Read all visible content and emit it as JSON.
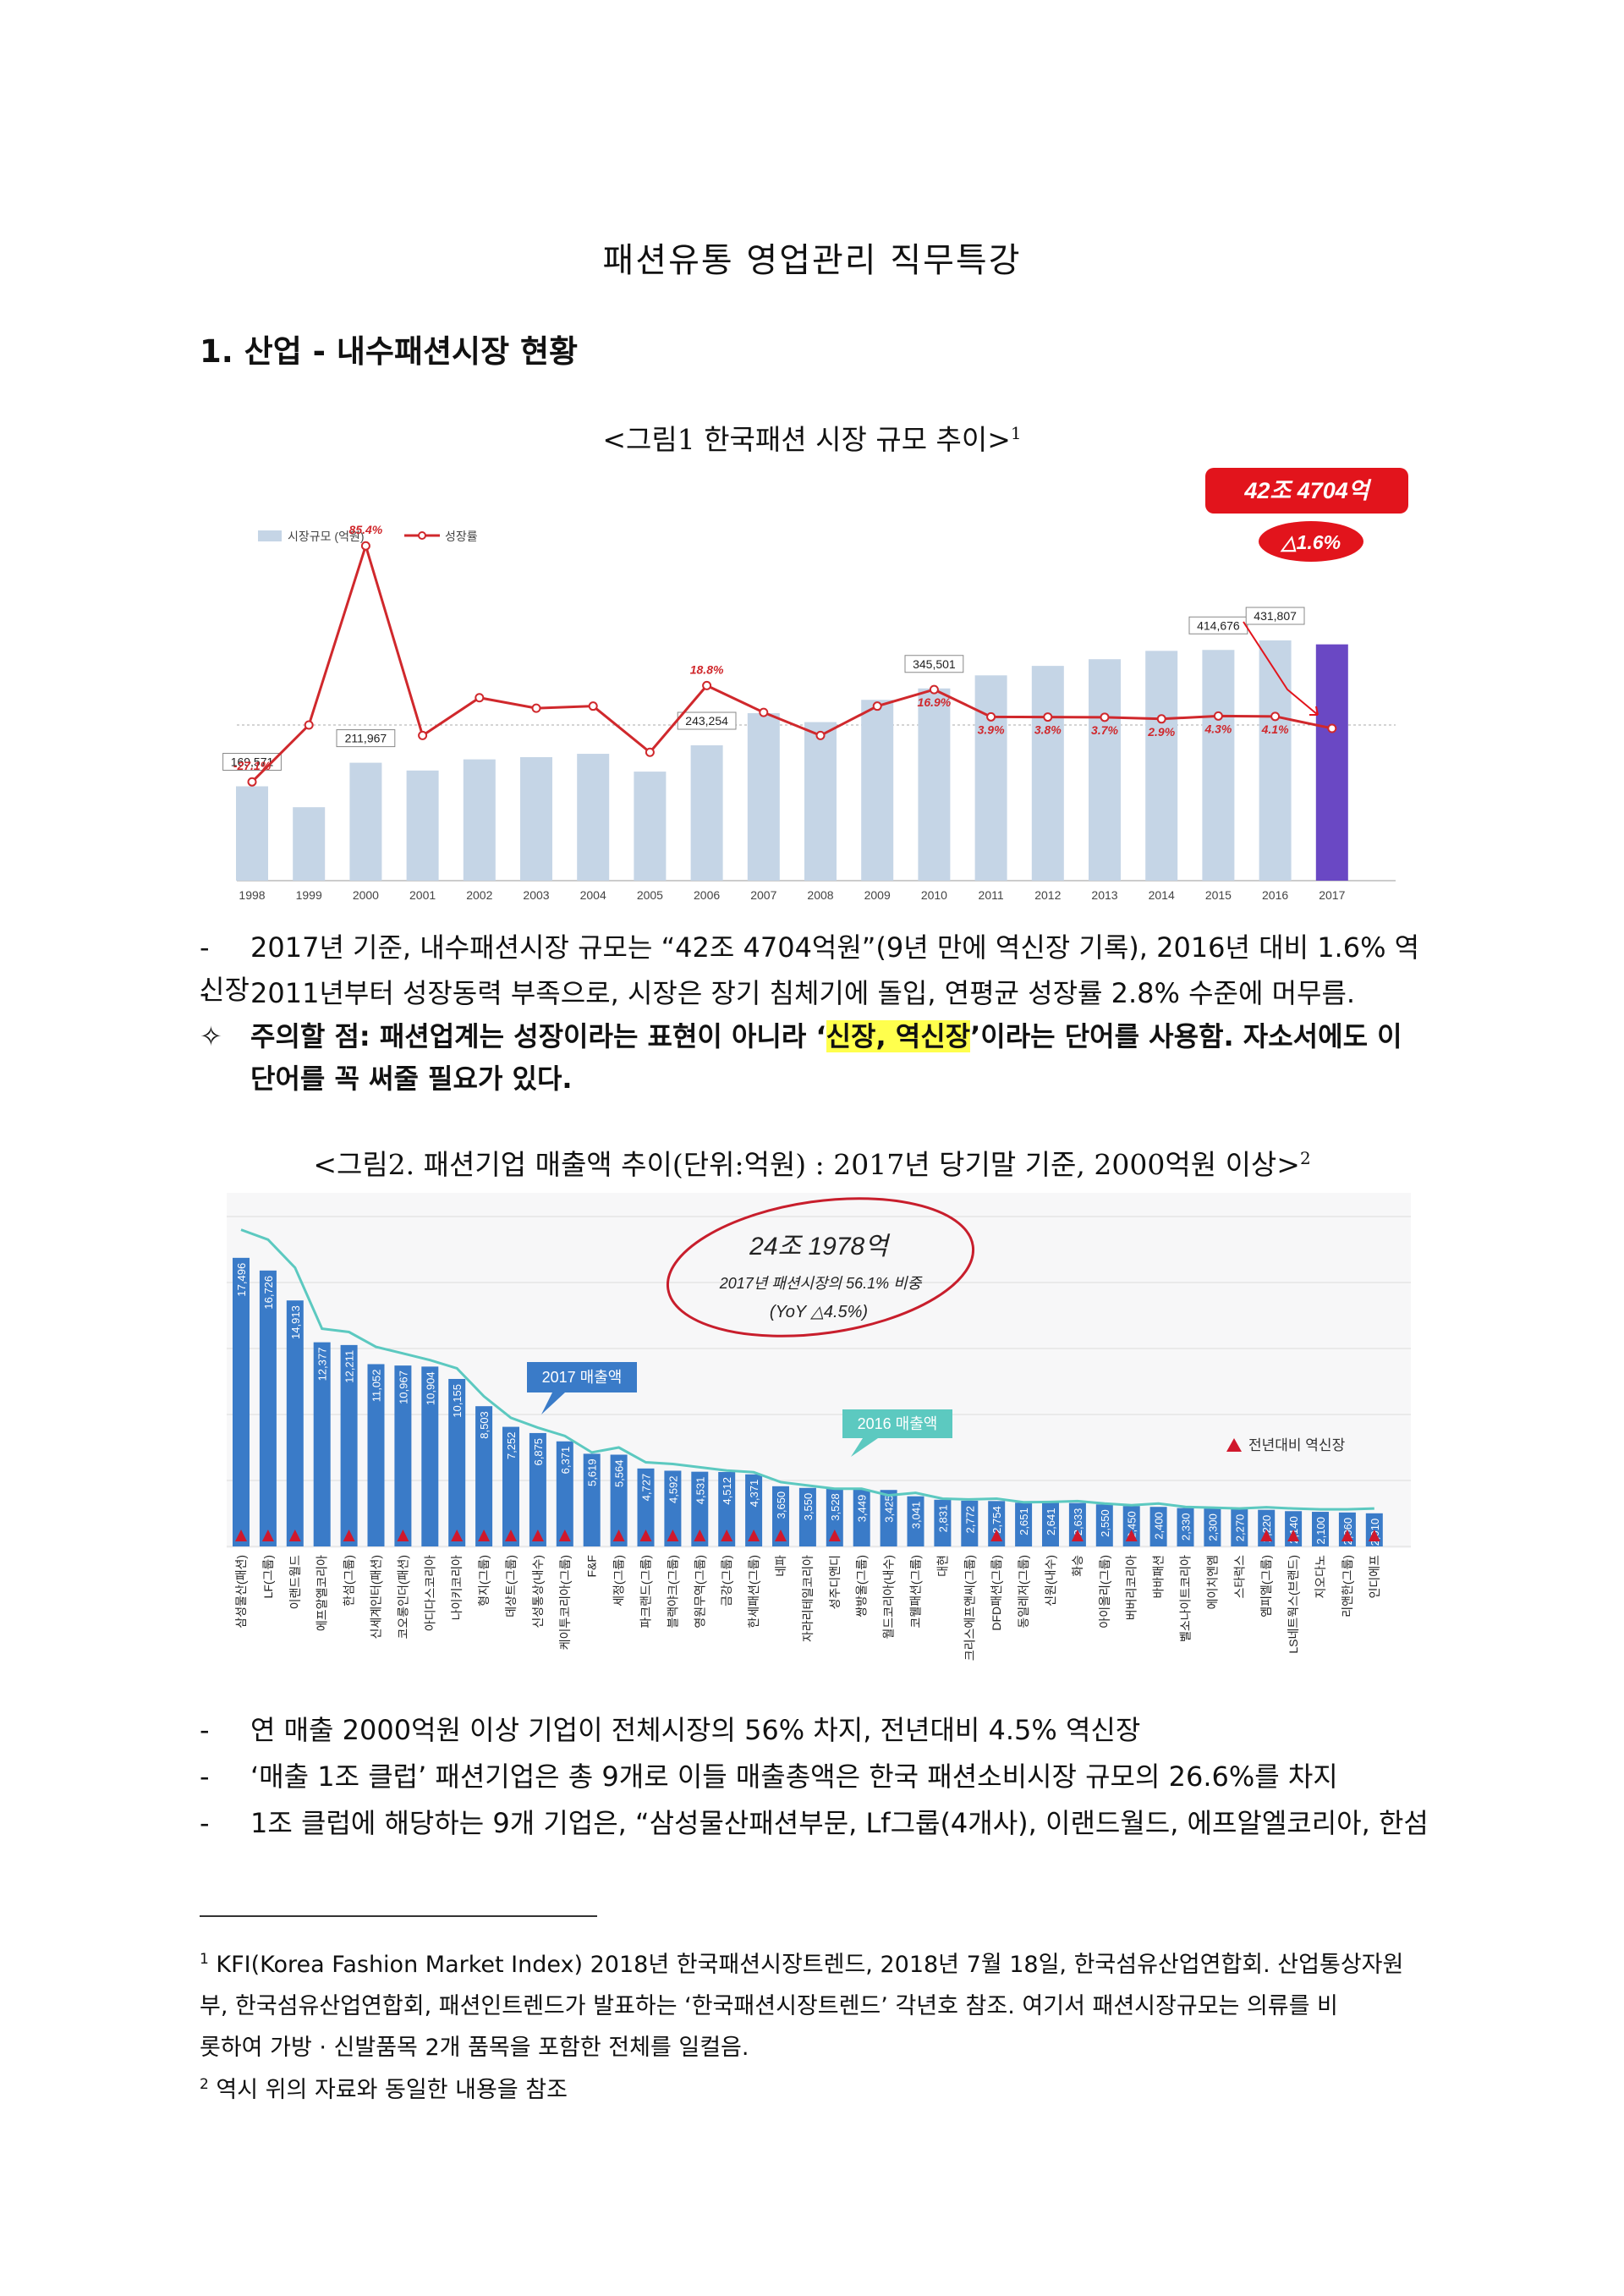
{
  "document": {
    "title": "패션유통 영업관리 직무특강",
    "section_heading": "1.  산업 - 내수패션시장 현황"
  },
  "figure1": {
    "caption": "<그림1 한국패션 시장 규모 추이>",
    "caption_ref": "1",
    "stamp_total": "42조 4704억",
    "stamp_growth": "△1.6%"
  },
  "figure2": {
    "caption": "<그림2. 패션기업 매출액 추이(단위:억원) : 2017년 당기말 기준, 2000억원 이상>",
    "caption_ref": "2",
    "note_line1": "24조 1978억",
    "note_line2": "2017년 패션시장의 56.1% 비중",
    "note_line3": "(YoY △4.5%)"
  },
  "bullets1": [
    {
      "mark": "-",
      "text": "2017년 기준, 내수패션시장 규모는 “42조 4704억원”(9년 만에 역신장 기록), 2016년 대비 1.6% 역신장"
    },
    {
      "mark": "-",
      "text": "2011년부터 성장동력 부족으로, 시장은 장기 침체기에 돌입, 연평균 성장률 2.8% 수준에 머무름."
    }
  ],
  "notice": {
    "mark": "✧",
    "part1": "주의할 점: 패션업계는 성장이라는 표현이 아니라 ‘",
    "highlight": "신장, 역신장",
    "part2": "’이라는 단어를 사용함. 자소서에도 이",
    "line2": "단어를 꼭 써줄 필요가 있다."
  },
  "bullets2": [
    {
      "mark": "-",
      "text": "연 매출 2000억원 이상 기업이 전체시장의 56% 차지, 전년대비 4.5% 역신장"
    },
    {
      "mark": "-",
      "text": "‘매출 1조 클럽’ 패션기업은 총 9개로 이들 매출총액은 한국 패션소비시장 규모의 26.6%를 차지"
    },
    {
      "mark": "-",
      "text": "1조 클럽에 해당하는 9개 기업은, “삼성물산패션부문, Lf그룹(4개사), 이랜드월드, 에프알엘코리아, 한섬"
    }
  ],
  "footnotes": [
    {
      "num": "1",
      "line1": "KFI(Korea Fashion Market Index) 2018년 한국패션시장트렌드, 2018년 7월 18일, 한국섬유산업연합회. 산업통상자원",
      "line2": "부, 한국섬유산업연합회, 패션인트렌드가 발표하는 ‘한국패션시장트렌드’ 각년호 참조. 여기서 패션시장규모는 의류를 비",
      "line3": "롯하여 가방 · 신발품목 2개 품목을 포함한 전체를 일컬음."
    },
    {
      "num": "2",
      "line1": "역시 위의 자료와 동일한 내용을 참조"
    }
  ],
  "chart_data": [
    {
      "type": "bar",
      "title": "",
      "legend": [
        "시장규모 (억원)",
        "성장률"
      ],
      "legend_position": "top-left",
      "categories": [
        "1998",
        "1999",
        "2000",
        "2001",
        "2002",
        "2003",
        "2004",
        "2005",
        "2006",
        "2007",
        "2008",
        "2009",
        "2010",
        "2011",
        "2012",
        "2013",
        "2014",
        "2015",
        "2016",
        "2017"
      ],
      "series": [
        {
          "name": "시장규모 (억원)",
          "type": "bar",
          "color": "#c5d5e6",
          "highlight_color": "#6a48c4",
          "values": [
            169571,
            132000,
            211967,
            198000,
            218000,
            222000,
            228000,
            196000,
            243254,
            301000,
            285000,
            325000,
            345501,
            369000,
            386000,
            398000,
            413000,
            414676,
            431807,
            424704
          ],
          "labels": {
            "1998": "169,571",
            "2000": "211,967",
            "2006": "243,254",
            "2010": "345,501",
            "2015": "414,676",
            "2016": "431,807"
          }
        },
        {
          "name": "성장률",
          "type": "line",
          "color": "#d0282c",
          "unit": "%",
          "values": [
            -27.1,
            0.0,
            85.4,
            -5.0,
            13.0,
            8.0,
            9.0,
            -13.0,
            18.8,
            6.0,
            -5.0,
            9.0,
            16.9,
            3.9,
            3.8,
            3.7,
            2.9,
            4.3,
            4.1,
            -1.6
          ],
          "labels": {
            "1998": "-27.1%",
            "2000": "85.4%",
            "2006": "18.8%",
            "2010": "16.9%",
            "2011": "3.9%",
            "2012": "3.8%",
            "2013": "3.7%",
            "2014": "2.9%",
            "2015": "4.3%",
            "2016": "4.1%"
          }
        }
      ],
      "grid": false
    },
    {
      "type": "bar",
      "title": "",
      "legend": [
        "2017 매출액",
        "2016 매출액",
        "전년대비 역신장"
      ],
      "legend_position": "right",
      "categories": [
        "삼성물산(패션)",
        "LF(그룹)",
        "이랜드월드",
        "에프알엘코리아",
        "한섬(그룹)",
        "신세계인터(패션)",
        "코오롱인더(패션)",
        "아디다스코리아",
        "나이키코리아",
        "형지(그룹)",
        "데상트(그룹)",
        "신성통상(내수)",
        "케이투코리아(그룹)",
        "F&F",
        "세정(그룹)",
        "파크랜드(그룹)",
        "블랙야크(그룹)",
        "영원무역(그룹)",
        "금강(그룹)",
        "한세패션(그룹)",
        "네파",
        "자라리테일코리아",
        "성주디앤디",
        "쌍방울(그룹)",
        "월드코리아(내수)",
        "코웰패션(그룹)",
        "대현",
        "크리스에프앤씨(그룹)",
        "DFD패션(그룹)",
        "동일레저(그룹)",
        "신원(내수)",
        "화승",
        "아이올리(그룹)",
        "버버리코리아",
        "바바패션",
        "벨소나이트코리아",
        "에이치엔엠",
        "스타럭스",
        "엠피엘(그룹)",
        "LS네트웍스(브랜드)",
        "지오다노",
        "리앤한(그룹)",
        "인디에프"
      ],
      "series": [
        {
          "name": "2017 매출액",
          "type": "bar",
          "color": "#3a7bc8",
          "values": [
            17496,
            16726,
            14913,
            12377,
            12211,
            11052,
            10967,
            10904,
            10155,
            8503,
            7252,
            6875,
            6371,
            5619,
            5564,
            4727,
            4592,
            4531,
            4512,
            4371,
            3650,
            3550,
            3528,
            3449,
            3425,
            3041,
            2831,
            2772,
            2754,
            2651,
            2641,
            2633,
            2550,
            2450,
            2400,
            2330,
            2300,
            2270,
            2220,
            2140,
            2100,
            2060,
            2010
          ],
          "labels": [
            "17,496",
            "16,726",
            "14,913",
            "12,377",
            "12,211",
            "11,052",
            "10,967",
            "10,904",
            "10,155",
            "8,503",
            "7,252",
            "6,875",
            "6,371",
            "5,619",
            "5,564",
            "4,727",
            "4,592",
            "4,531",
            "4,512",
            "4,371",
            "3,650",
            "3,550",
            "3,528",
            "3,449",
            "3,425",
            "3,041",
            "2,831",
            "2,772",
            "2,754",
            "2,651",
            "2,641",
            "2,633",
            "2,550",
            "2,450",
            "2,400",
            "2,330",
            "2,300",
            "2,270",
            "2,220",
            "2,140",
            "2,100",
            "2,060",
            "2,010"
          ]
        },
        {
          "name": "2016 매출액",
          "type": "line",
          "color": "#5cc9c0",
          "values": [
            19200,
            18600,
            16900,
            13200,
            13000,
            12100,
            11700,
            11300,
            10800,
            9100,
            7800,
            7200,
            6700,
            5700,
            6000,
            5100,
            5000,
            4800,
            4600,
            4500,
            3900,
            3700,
            3500,
            3500,
            3100,
            3250,
            2900,
            2850,
            2900,
            2680,
            2700,
            2750,
            2600,
            2500,
            2600,
            2400,
            2350,
            2300,
            2380,
            2300,
            2250,
            2250,
            2300
          ]
        },
        {
          "name": "전년대비 역신장",
          "type": "marker",
          "color": "#d0182c",
          "flags": [
            1,
            1,
            1,
            0,
            1,
            0,
            1,
            0,
            1,
            1,
            1,
            1,
            1,
            0,
            1,
            1,
            1,
            1,
            1,
            1,
            1,
            0,
            1,
            0,
            0,
            0,
            0,
            0,
            1,
            0,
            0,
            1,
            0,
            1,
            0,
            0,
            0,
            0,
            1,
            1,
            0,
            1,
            1
          ]
        }
      ],
      "grid": true
    }
  ]
}
